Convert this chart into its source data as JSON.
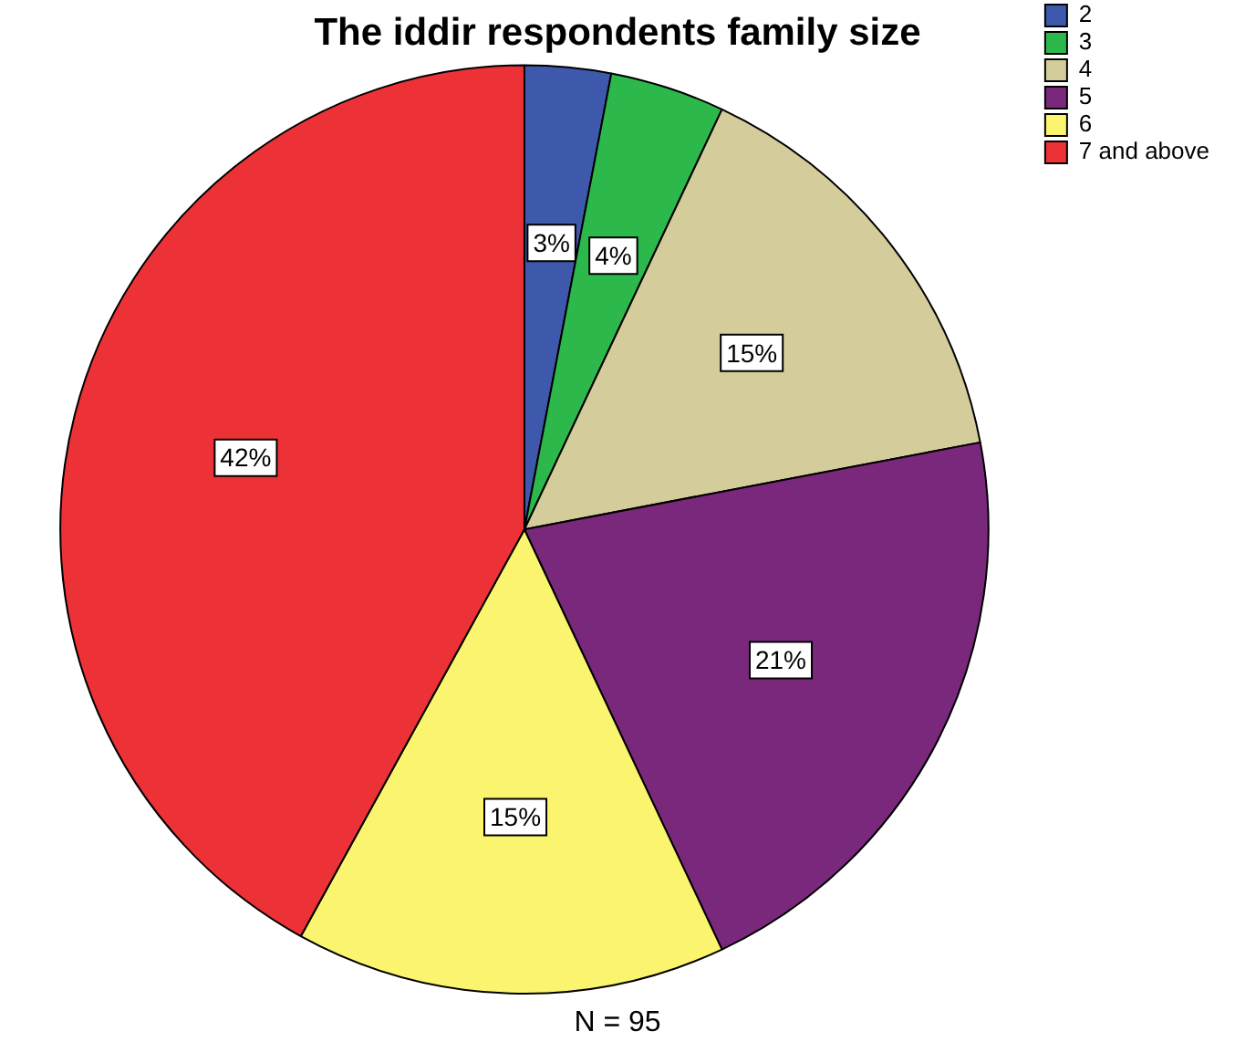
{
  "chart_data": {
    "type": "pie",
    "title": "The iddir respondents family size",
    "categories": [
      "2",
      "3",
      "4",
      "5",
      "6",
      "7 and above"
    ],
    "values": [
      3,
      4,
      15,
      21,
      15,
      42
    ],
    "value_labels": [
      "3%",
      "4%",
      "15%",
      "21%",
      "15%",
      "42%"
    ],
    "colors": [
      "#3e58ac",
      "#2db84c",
      "#d4cd9b",
      "#7a287c",
      "#fbf46e",
      "#ec3237"
    ],
    "legend": "top right",
    "annotations": [
      "N = 95"
    ]
  }
}
